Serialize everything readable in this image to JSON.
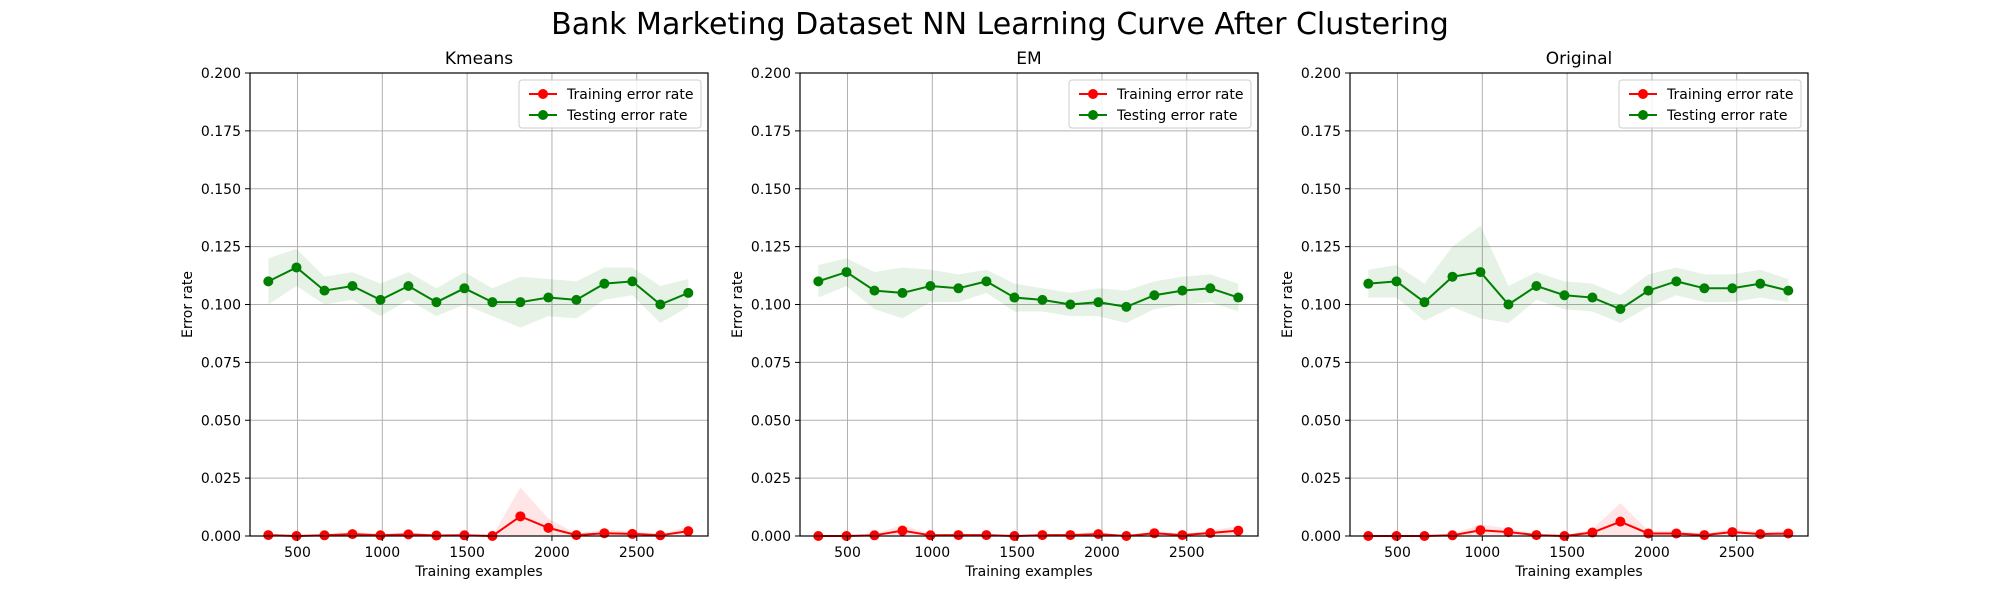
{
  "figure_title": "Bank Marketing Dataset NN Learning Curve After Clustering",
  "chart_data": [
    {
      "type": "line",
      "title": "Kmeans",
      "xlabel": "Training examples",
      "ylabel": "Error rate",
      "ylim": [
        0,
        0.2
      ],
      "xlim": [
        220,
        2920
      ],
      "xticks": [
        500,
        1000,
        1500,
        2000,
        2500
      ],
      "yticks": [
        "0.000",
        "0.025",
        "0.050",
        "0.075",
        "0.100",
        "0.125",
        "0.150",
        "0.175",
        "0.200"
      ],
      "grid": true,
      "legend": "top-right",
      "x": [
        328,
        494,
        659,
        824,
        989,
        1154,
        1319,
        1484,
        1649,
        1814,
        1979,
        2144,
        2309,
        2474,
        2639,
        2804
      ],
      "series": [
        {
          "name": "Training error rate",
          "color": "#ff0000",
          "values": [
            0.0004,
            0.0,
            0.0003,
            0.0008,
            0.0003,
            0.0007,
            0.0002,
            0.0003,
            0.0,
            0.0085,
            0.0035,
            0.0004,
            0.0012,
            0.0009,
            0.0003,
            0.0021
          ],
          "spread": [
            0.0006,
            0.0,
            0.0005,
            0.001,
            0.0005,
            0.001,
            0.0004,
            0.0005,
            0.0,
            0.0125,
            0.004,
            0.0006,
            0.0015,
            0.0012,
            0.0005,
            0.002
          ]
        },
        {
          "name": "Testing error rate",
          "color": "#008000",
          "values": [
            0.11,
            0.116,
            0.106,
            0.108,
            0.102,
            0.108,
            0.101,
            0.107,
            0.101,
            0.101,
            0.103,
            0.102,
            0.109,
            0.11,
            0.1,
            0.105
          ],
          "spread": [
            0.01,
            0.008,
            0.006,
            0.006,
            0.007,
            0.006,
            0.006,
            0.007,
            0.006,
            0.011,
            0.008,
            0.008,
            0.007,
            0.006,
            0.008,
            0.006
          ]
        }
      ]
    },
    {
      "type": "line",
      "title": "EM",
      "xlabel": "Training examples",
      "ylabel": "Error rate",
      "ylim": [
        0,
        0.2
      ],
      "xlim": [
        220,
        2920
      ],
      "xticks": [
        500,
        1000,
        1500,
        2000,
        2500
      ],
      "yticks": [
        "0.000",
        "0.025",
        "0.050",
        "0.075",
        "0.100",
        "0.125",
        "0.150",
        "0.175",
        "0.200"
      ],
      "grid": true,
      "legend": "top-right",
      "x": [
        328,
        494,
        659,
        824,
        989,
        1154,
        1319,
        1484,
        1649,
        1814,
        1979,
        2144,
        2309,
        2474,
        2639,
        2804
      ],
      "series": [
        {
          "name": "Training error rate",
          "color": "#ff0000",
          "values": [
            0.0,
            0.0,
            0.0003,
            0.0023,
            0.0003,
            0.0004,
            0.0004,
            0.0,
            0.0004,
            0.0004,
            0.0008,
            0.0,
            0.0012,
            0.0004,
            0.0013,
            0.0023
          ],
          "spread": [
            0.0,
            0.0,
            0.0005,
            0.0025,
            0.0005,
            0.0005,
            0.0005,
            0.0,
            0.0005,
            0.0005,
            0.001,
            0.0,
            0.001,
            0.0005,
            0.001,
            0.002
          ]
        },
        {
          "name": "Testing error rate",
          "color": "#008000",
          "values": [
            0.11,
            0.114,
            0.106,
            0.105,
            0.108,
            0.107,
            0.11,
            0.103,
            0.102,
            0.1,
            0.101,
            0.099,
            0.104,
            0.106,
            0.107,
            0.103
          ],
          "spread": [
            0.007,
            0.006,
            0.008,
            0.011,
            0.007,
            0.006,
            0.005,
            0.006,
            0.005,
            0.005,
            0.006,
            0.007,
            0.006,
            0.006,
            0.006,
            0.006
          ]
        }
      ]
    },
    {
      "type": "line",
      "title": "Original",
      "xlabel": "Training examples",
      "ylabel": "Error rate",
      "ylim": [
        0,
        0.2
      ],
      "xlim": [
        220,
        2920
      ],
      "xticks": [
        500,
        1000,
        1500,
        2000,
        2500
      ],
      "yticks": [
        "0.000",
        "0.025",
        "0.050",
        "0.075",
        "0.100",
        "0.125",
        "0.150",
        "0.175",
        "0.200"
      ],
      "grid": true,
      "legend": "top-right",
      "x": [
        328,
        494,
        659,
        824,
        989,
        1154,
        1319,
        1484,
        1649,
        1814,
        1979,
        2144,
        2309,
        2474,
        2639,
        2804
      ],
      "series": [
        {
          "name": "Training error rate",
          "color": "#ff0000",
          "values": [
            0.0,
            0.0,
            0.0,
            0.0003,
            0.0025,
            0.0017,
            0.0004,
            0.0,
            0.0015,
            0.0062,
            0.0011,
            0.0011,
            0.0004,
            0.0017,
            0.0008,
            0.0011
          ],
          "spread": [
            0.0,
            0.0,
            0.0,
            0.0005,
            0.0025,
            0.0015,
            0.0005,
            0.0,
            0.0015,
            0.008,
            0.0012,
            0.0012,
            0.0005,
            0.0015,
            0.001,
            0.001
          ]
        },
        {
          "name": "Testing error rate",
          "color": "#008000",
          "values": [
            0.109,
            0.11,
            0.101,
            0.112,
            0.114,
            0.1,
            0.108,
            0.104,
            0.103,
            0.098,
            0.106,
            0.11,
            0.107,
            0.107,
            0.109,
            0.106
          ],
          "spread": [
            0.006,
            0.007,
            0.008,
            0.013,
            0.02,
            0.008,
            0.006,
            0.006,
            0.006,
            0.006,
            0.007,
            0.006,
            0.006,
            0.006,
            0.006,
            0.005
          ]
        }
      ]
    }
  ]
}
